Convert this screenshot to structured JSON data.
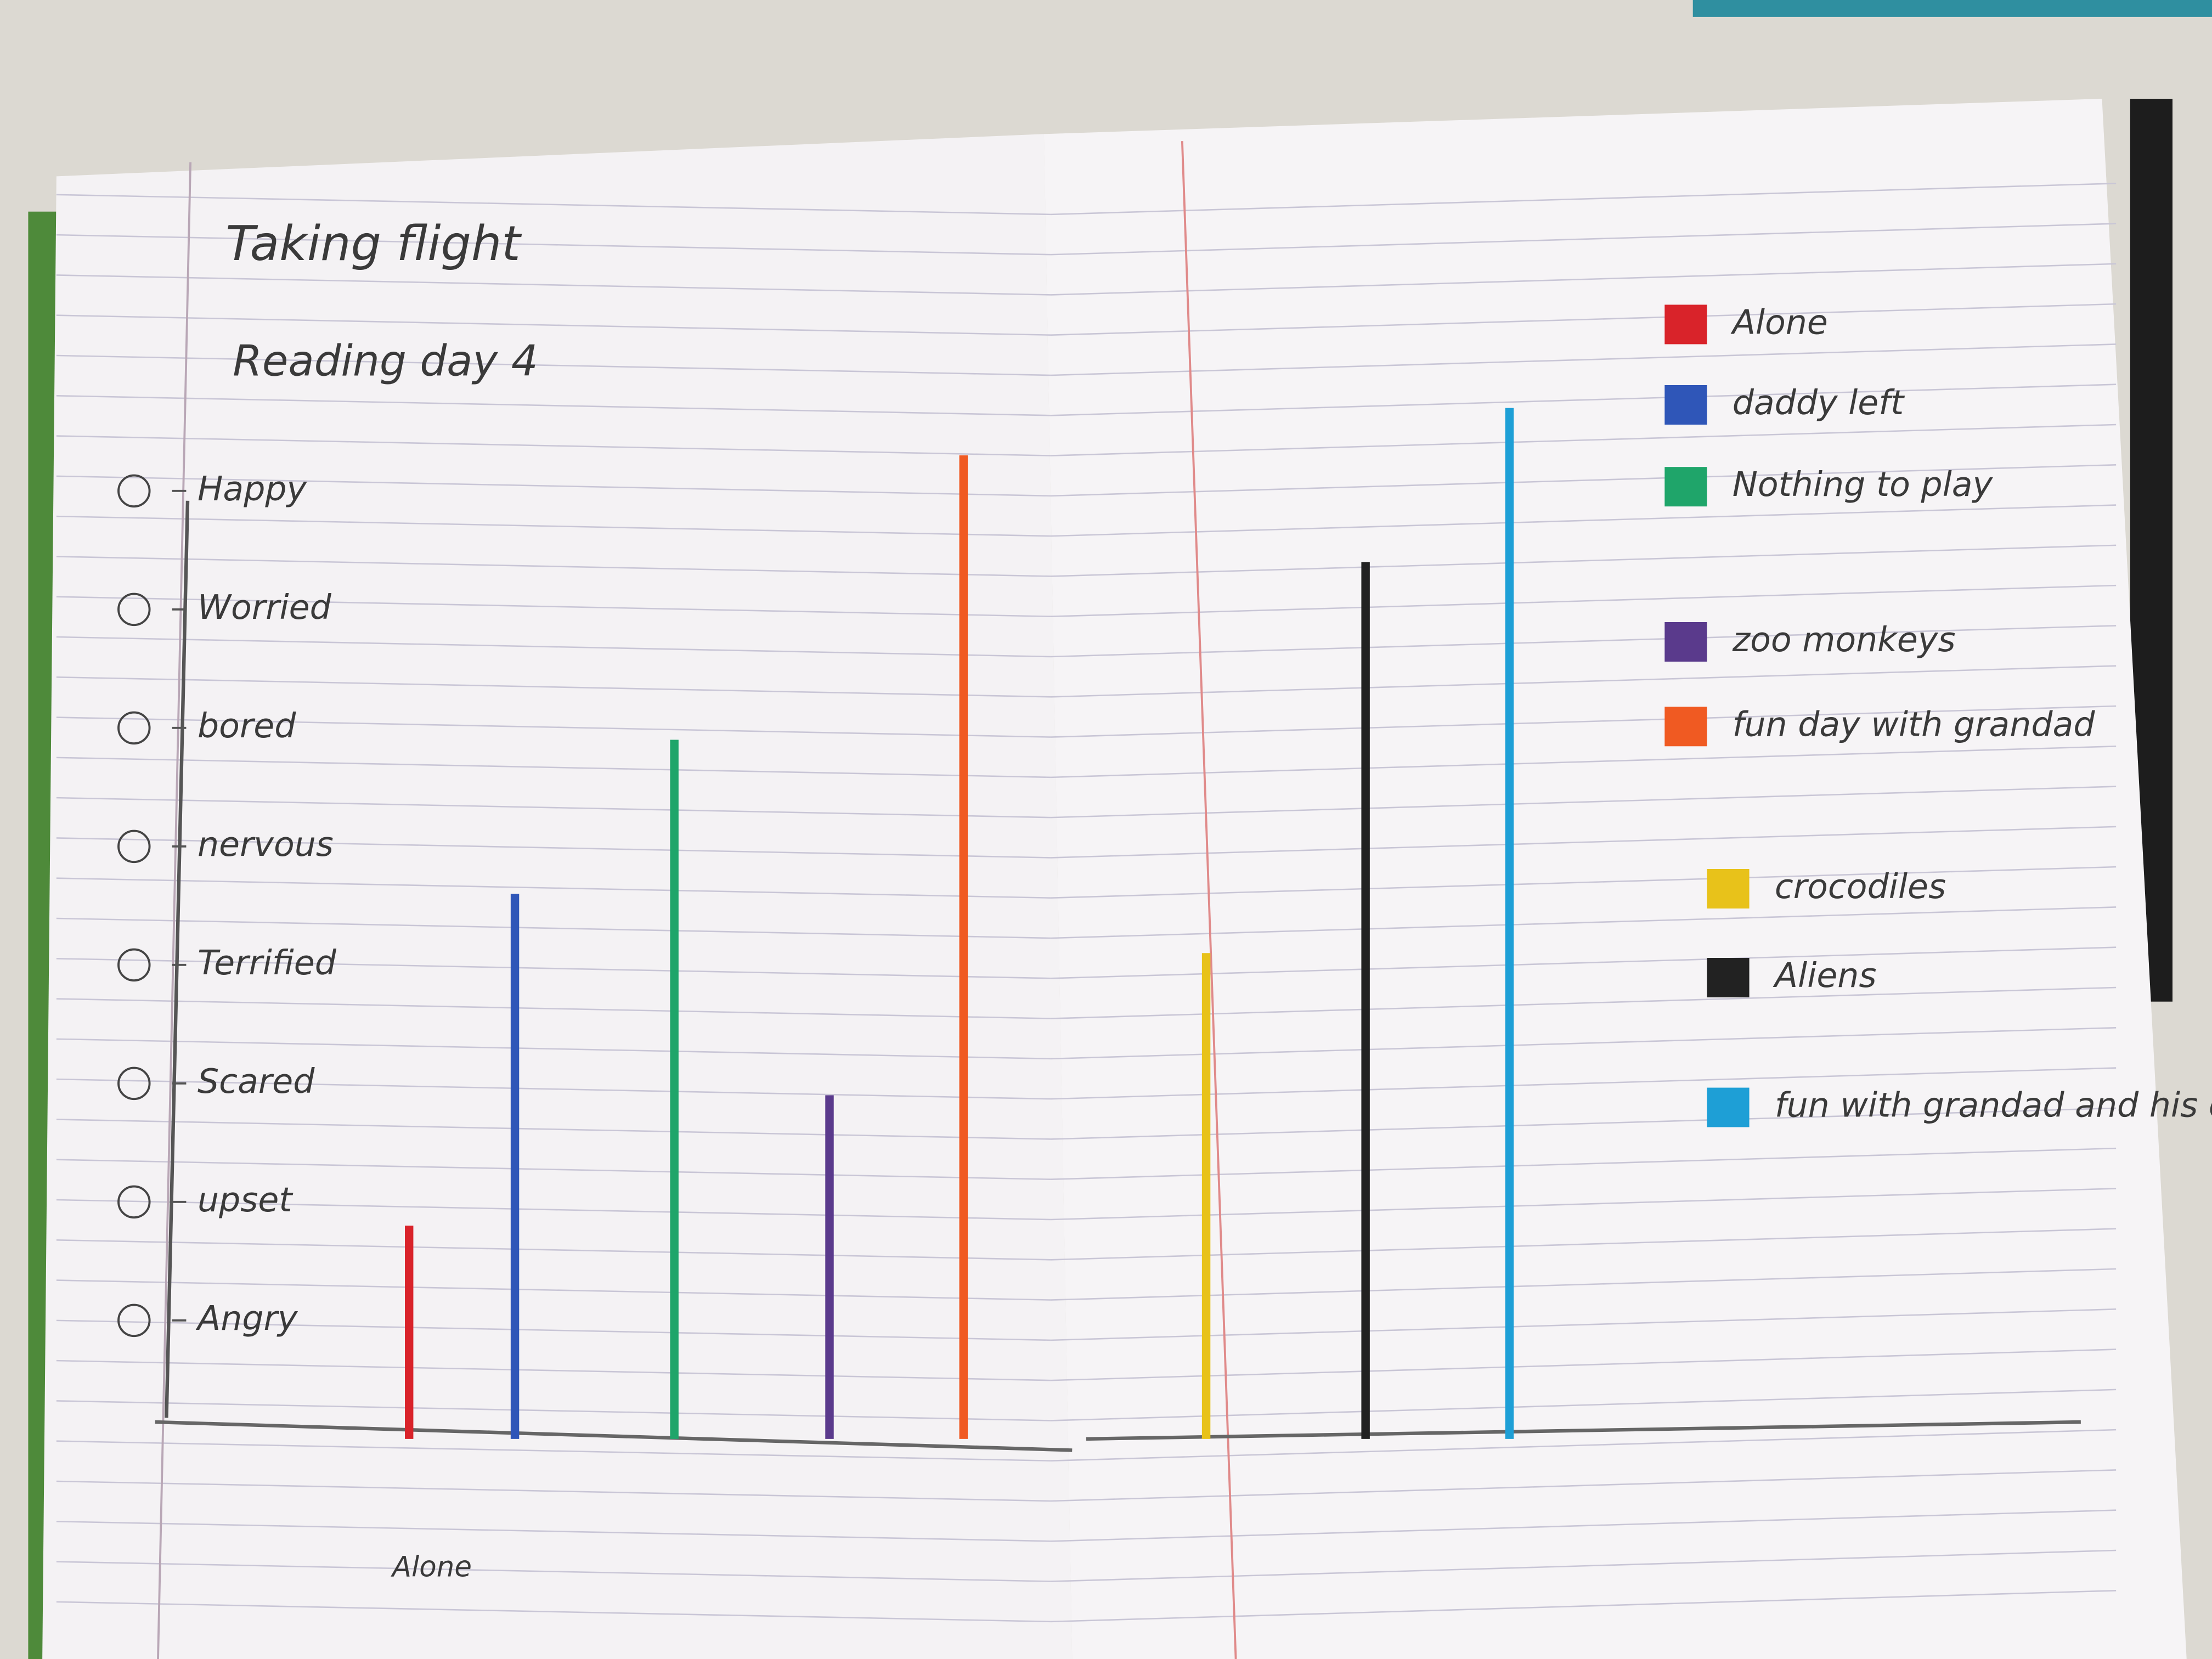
{
  "chart_data": {
    "type": "bar",
    "title": "Taking flight",
    "subtitle": "Reading day 4",
    "categories": [
      "Alone",
      "daddy left",
      "Nothing to play",
      "zoo monkeys",
      "fun day with grandad",
      "crocodiles",
      "Aliens",
      "fun with grandad and his dad"
    ],
    "values": [
      1.8,
      4.6,
      5.9,
      2.9,
      8.3,
      4.1,
      7.4,
      8.7
    ],
    "colors": [
      "#d9232a",
      "#2f56b8",
      "#1fa56a",
      "#5a3a8c",
      "#f05a22",
      "#e8c21a",
      "#222222",
      "#1e9fd6"
    ],
    "ylim": [
      0,
      9
    ],
    "yticks": [
      {
        "value": 1,
        "label": "Angry"
      },
      {
        "value": 2,
        "label": "upset"
      },
      {
        "value": 3,
        "label": "Scared"
      },
      {
        "value": 4,
        "label": "Terrified"
      },
      {
        "value": 5,
        "label": "nervous"
      },
      {
        "value": 6,
        "label": "bored"
      },
      {
        "value": 7,
        "label": "Worried"
      },
      {
        "value": 8,
        "label": "Happy"
      }
    ],
    "annotations": [
      "Alone"
    ]
  }
}
